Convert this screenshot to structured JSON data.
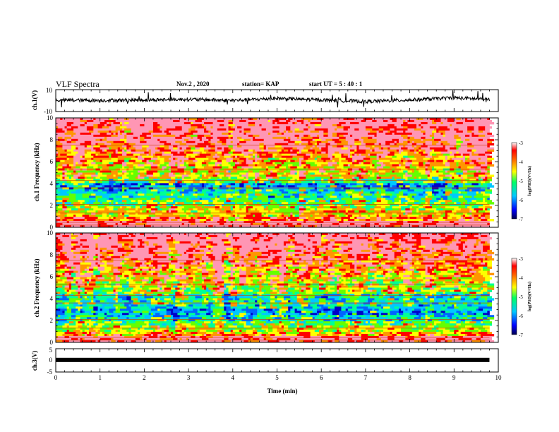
{
  "header": {
    "title": "VLF Spectra",
    "date": "Nov.2 , 2020",
    "station": "station= KAP",
    "start": "start UT = 5 : 40 : 1"
  },
  "colors": {
    "spectrogram_palette": [
      "#0000c8",
      "#0064ff",
      "#00c8ff",
      "#00ff96",
      "#64ff00",
      "#ffff00",
      "#ff9600",
      "#ff0000",
      "#ff96b4"
    ]
  },
  "chart_data": [
    {
      "type": "line",
      "id": "ch1_waveform",
      "ylabel": "ch.1(V)",
      "ylim": [
        -10,
        10
      ],
      "yticks": [
        "10",
        "-10"
      ],
      "xlim": [
        0,
        10
      ],
      "approx_level": [
        [
          0,
          0.4
        ],
        [
          1,
          0.2
        ],
        [
          2,
          0.6
        ],
        [
          3,
          1.2
        ],
        [
          4,
          0.1
        ],
        [
          5,
          2.0
        ],
        [
          6,
          0.6
        ],
        [
          7,
          -0.8
        ],
        [
          8,
          0.6
        ],
        [
          9,
          2.6
        ],
        [
          9.8,
          1.0
        ]
      ]
    },
    {
      "type": "heatmap",
      "id": "ch1_spectrogram",
      "ylabel": "ch.1 Frequency (kHz)",
      "ylim": [
        0,
        10
      ],
      "yticks": [
        "0",
        "2",
        "4",
        "6",
        "8",
        "10"
      ],
      "xlim": [
        0,
        10
      ],
      "colorbar": {
        "label": "log(PSD)(V²/Hz)",
        "range": [
          -7,
          -3
        ],
        "ticks": [
          "-3",
          "-4",
          "-5",
          "-6",
          "-7"
        ]
      },
      "band_levels_by_khz": [
        0.95,
        0.75,
        0.62,
        0.55,
        0.45,
        0.35,
        0.28,
        0.22,
        0.45,
        0.6,
        0.62,
        0.66,
        0.7,
        0.76,
        0.8,
        0.84,
        0.86,
        0.9,
        0.92,
        0.94
      ]
    },
    {
      "type": "heatmap",
      "id": "ch2_spectrogram",
      "ylabel": "ch.2 Frequency (kHz)",
      "ylim": [
        0,
        10
      ],
      "yticks": [
        "0",
        "2",
        "4",
        "6",
        "8",
        "10"
      ],
      "xlim": [
        0,
        10
      ],
      "colorbar": {
        "label": "log(PSD)(V²/Hz)",
        "range": [
          -7,
          -3
        ],
        "ticks": [
          "-3",
          "-4",
          "-5",
          "-6",
          "-7"
        ]
      },
      "band_levels_by_khz": [
        0.9,
        0.7,
        0.55,
        0.45,
        0.3,
        0.22,
        0.28,
        0.35,
        0.32,
        0.52,
        0.58,
        0.62,
        0.66,
        0.72,
        0.76,
        0.82,
        0.86,
        0.9,
        0.92,
        0.95
      ]
    },
    {
      "type": "line",
      "id": "ch3_level",
      "ylabel": "ch.3(V)",
      "ylim": [
        -5,
        5
      ],
      "yticks": [
        "5",
        "0",
        "-5"
      ],
      "xlim": [
        0,
        10
      ],
      "xlabel": "Time (min)",
      "xticks": [
        "0",
        "1",
        "2",
        "3",
        "4",
        "5",
        "6",
        "7",
        "8",
        "9",
        "10"
      ],
      "level": [
        [
          0,
          0.2
        ],
        [
          9.8,
          0.2
        ]
      ]
    }
  ]
}
